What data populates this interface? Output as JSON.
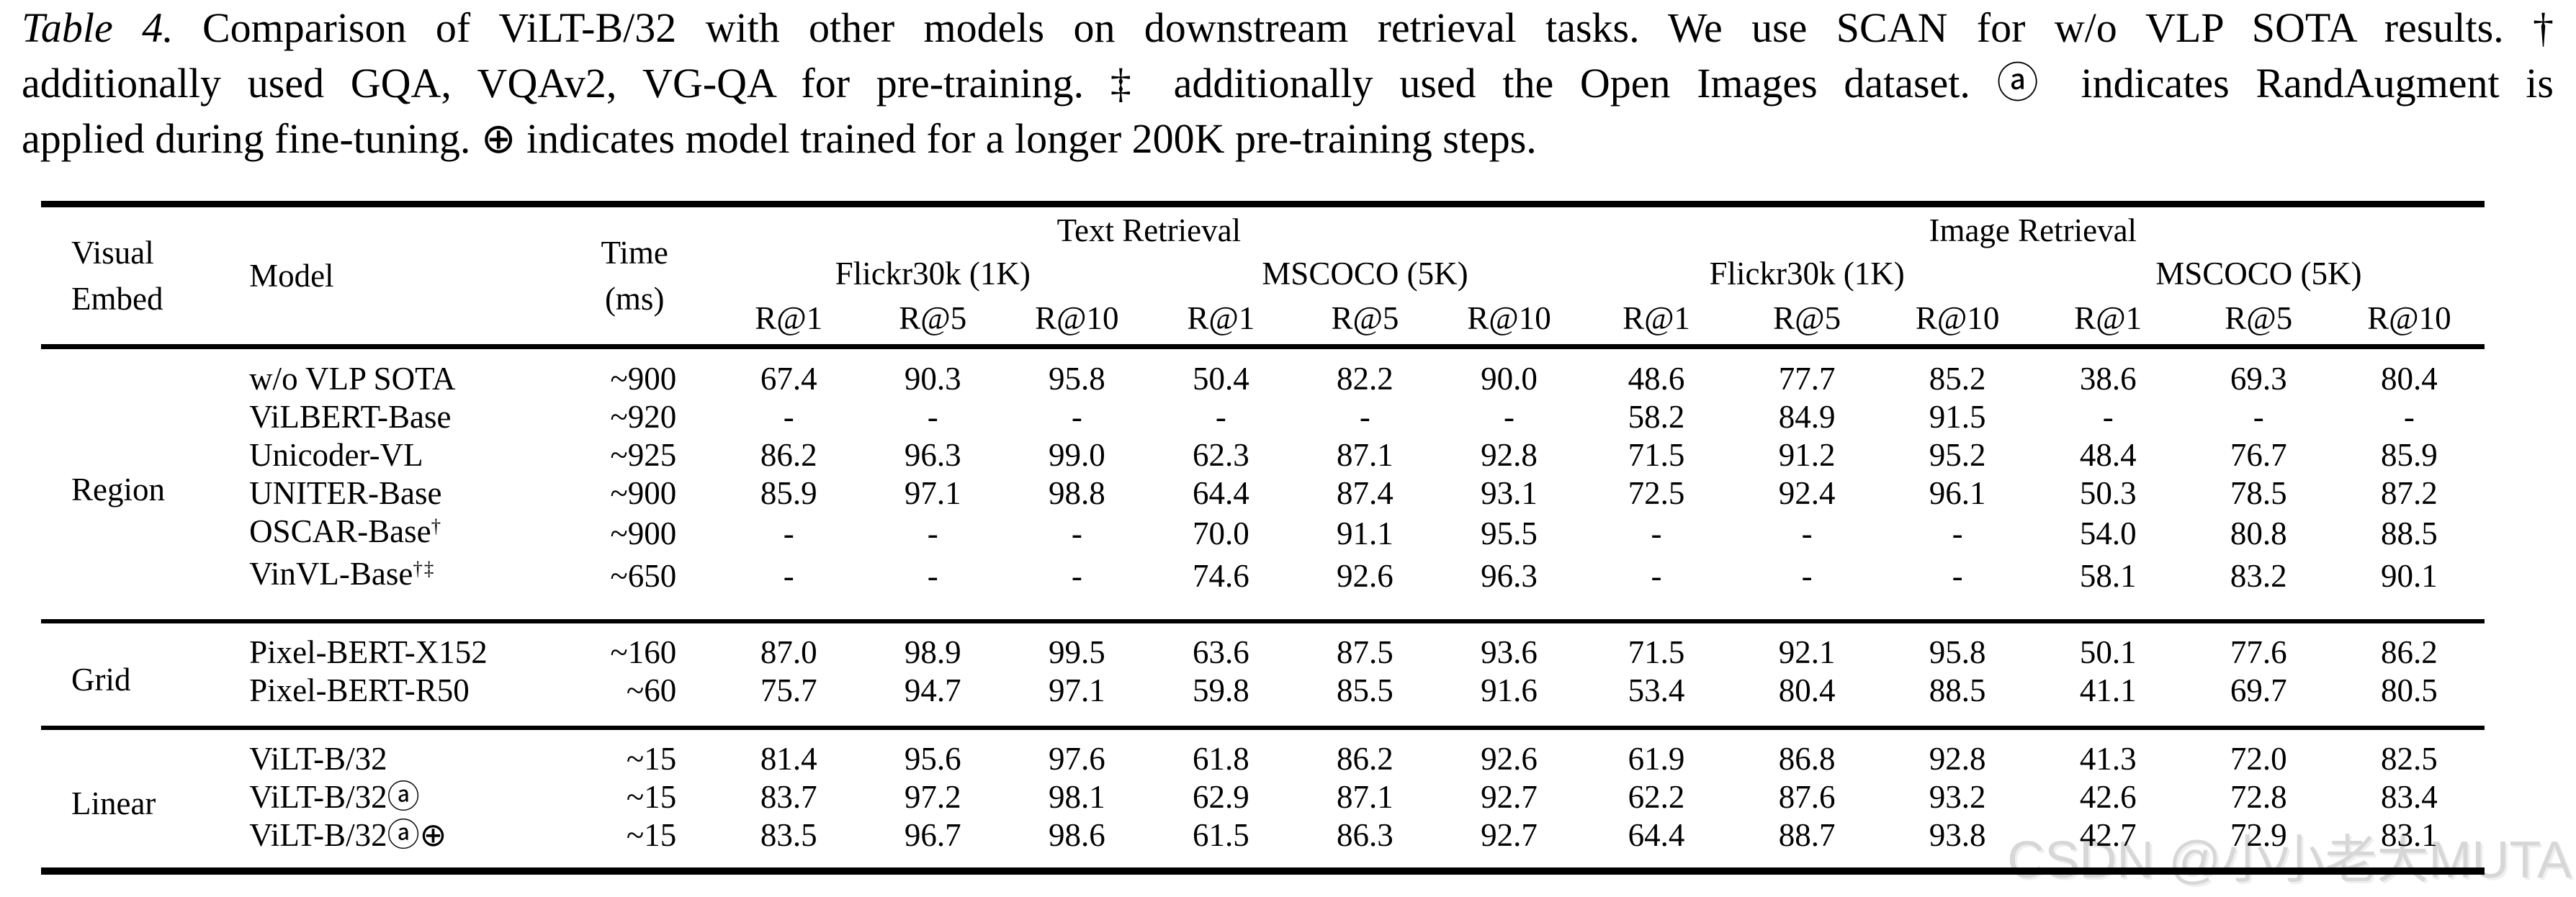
{
  "caption": {
    "lines": [
      {
        "label": "Table 4.",
        "text": " Comparison of ViLT-B/32 with other models on downstream retrieval tasks. We use SCAN for w/o VLP SOTA results. †"
      },
      {
        "text": "additionally used GQA, VQAv2, VG-QA for pre-training. ‡ additionally used the Open Images dataset. ⓐ indicates RandAugment is"
      },
      {
        "text": "applied during fine-tuning. ⊕ indicates model trained for a longer 200K pre-training steps."
      }
    ]
  },
  "table": {
    "headers": {
      "visual_embed": [
        "Visual",
        "Embed"
      ],
      "model": "Model",
      "time": [
        "Time",
        "(ms)"
      ],
      "tasks": [
        {
          "label": "Text Retrieval",
          "datasets": [
            "Flickr30k (1K)",
            "MSCOCO (5K)"
          ]
        },
        {
          "label": "Image Retrieval",
          "datasets": [
            "Flickr30k (1K)",
            "MSCOCO (5K)"
          ]
        }
      ],
      "metrics": [
        "R@1",
        "R@5",
        "R@10"
      ]
    },
    "body": [
      {
        "embed": "Region",
        "rows": [
          {
            "model": "w/o VLP SOTA",
            "time": "~900",
            "values": [
              "67.4",
              "90.3",
              "95.8",
              "50.4",
              "82.2",
              "90.0",
              "48.6",
              "77.7",
              "85.2",
              "38.6",
              "69.3",
              "80.4"
            ]
          },
          {
            "model": "ViLBERT-Base",
            "time": "~920",
            "values": [
              "-",
              "-",
              "-",
              "-",
              "-",
              "-",
              "58.2",
              "84.9",
              "91.5",
              "-",
              "-",
              "-"
            ]
          },
          {
            "model": "Unicoder-VL",
            "time": "~925",
            "values": [
              "86.2",
              "96.3",
              "99.0",
              "62.3",
              "87.1",
              "92.8",
              "71.5",
              "91.2",
              "95.2",
              "48.4",
              "76.7",
              "85.9"
            ]
          },
          {
            "model": "UNITER-Base",
            "time": "~900",
            "values": [
              "85.9",
              "97.1",
              "98.8",
              "64.4",
              "87.4",
              "93.1",
              "72.5",
              "92.4",
              "96.1",
              "50.3",
              "78.5",
              "87.2"
            ]
          },
          {
            "model": "OSCAR-Base",
            "sup": "†",
            "time": "~900",
            "values": [
              "-",
              "-",
              "-",
              "70.0",
              "91.1",
              "95.5",
              "-",
              "-",
              "-",
              "54.0",
              "80.8",
              "88.5"
            ]
          },
          {
            "model": "VinVL-Base",
            "sup": "†‡",
            "time": "~650",
            "values": [
              "-",
              "-",
              "-",
              "74.6",
              "92.6",
              "96.3",
              "-",
              "-",
              "-",
              "58.1",
              "83.2",
              "90.1"
            ]
          }
        ]
      },
      {
        "embed": "Grid",
        "rows": [
          {
            "model": "Pixel-BERT-X152",
            "time": "~160",
            "values": [
              "87.0",
              "98.9",
              "99.5",
              "63.6",
              "87.5",
              "93.6",
              "71.5",
              "92.1",
              "95.8",
              "50.1",
              "77.6",
              "86.2"
            ]
          },
          {
            "model": "Pixel-BERT-R50",
            "time": "~60",
            "values": [
              "75.7",
              "94.7",
              "97.1",
              "59.8",
              "85.5",
              "91.6",
              "53.4",
              "80.4",
              "88.5",
              "41.1",
              "69.7",
              "80.5"
            ]
          }
        ]
      },
      {
        "embed": "Linear",
        "rows": [
          {
            "model": "ViLT-B/32",
            "time": "~15",
            "values": [
              "81.4",
              "95.6",
              "97.6",
              "61.8",
              "86.2",
              "92.6",
              "61.9",
              "86.8",
              "92.8",
              "41.3",
              "72.0",
              "82.5"
            ]
          },
          {
            "model": "ViLT-B/32ⓐ",
            "time": "~15",
            "values": [
              "83.7",
              "97.2",
              "98.1",
              "62.9",
              "87.1",
              "92.7",
              "62.2",
              "87.6",
              "93.2",
              "42.6",
              "72.8",
              "83.4"
            ]
          },
          {
            "model": "ViLT-B/32ⓐ⊕",
            "time": "~15",
            "values": [
              "83.5",
              "96.7",
              "98.6",
              "61.5",
              "86.3",
              "92.7",
              "64.4",
              "88.7",
              "93.8",
              "42.7",
              "72.9",
              "83.1"
            ]
          }
        ]
      }
    ]
  },
  "watermark": "CSDN @小小老大MUTA"
}
